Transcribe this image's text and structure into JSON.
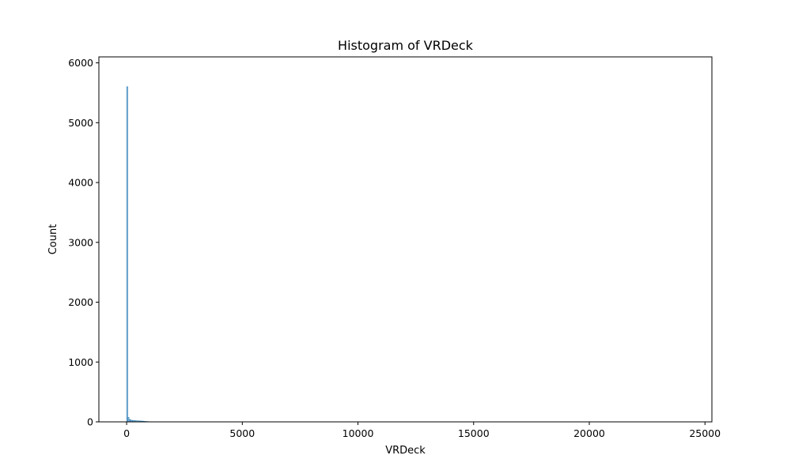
{
  "chart_data": {
    "type": "bar",
    "title": "Histogram of VRDeck",
    "xlabel": "VRDeck",
    "ylabel": "Count",
    "xlim": [
      -1200,
      25300
    ],
    "ylim": [
      0,
      6100
    ],
    "xticks": [
      0,
      5000,
      10000,
      15000,
      20000,
      25000
    ],
    "yticks": [
      0,
      1000,
      2000,
      3000,
      4000,
      5000,
      6000
    ],
    "grid": false,
    "legend": "none",
    "bar_color": "#1f77b4",
    "bins": [
      {
        "x0": 0,
        "x1": 50,
        "count": 5600
      },
      {
        "x0": 50,
        "x1": 100,
        "count": 75
      },
      {
        "x0": 100,
        "x1": 150,
        "count": 40
      },
      {
        "x0": 150,
        "x1": 200,
        "count": 30
      },
      {
        "x0": 200,
        "x1": 250,
        "count": 25
      },
      {
        "x0": 250,
        "x1": 300,
        "count": 22
      },
      {
        "x0": 300,
        "x1": 350,
        "count": 20
      },
      {
        "x0": 350,
        "x1": 400,
        "count": 18
      },
      {
        "x0": 400,
        "x1": 450,
        "count": 17
      },
      {
        "x0": 450,
        "x1": 500,
        "count": 16
      },
      {
        "x0": 500,
        "x1": 550,
        "count": 15
      },
      {
        "x0": 550,
        "x1": 600,
        "count": 14
      },
      {
        "x0": 600,
        "x1": 650,
        "count": 13
      },
      {
        "x0": 650,
        "x1": 700,
        "count": 12
      },
      {
        "x0": 700,
        "x1": 750,
        "count": 10
      },
      {
        "x0": 750,
        "x1": 800,
        "count": 8
      },
      {
        "x0": 800,
        "x1": 850,
        "count": 6
      },
      {
        "x0": 850,
        "x1": 900,
        "count": 5
      },
      {
        "x0": 900,
        "x1": 950,
        "count": 4
      },
      {
        "x0": 950,
        "x1": 1000,
        "count": 3
      }
    ]
  }
}
